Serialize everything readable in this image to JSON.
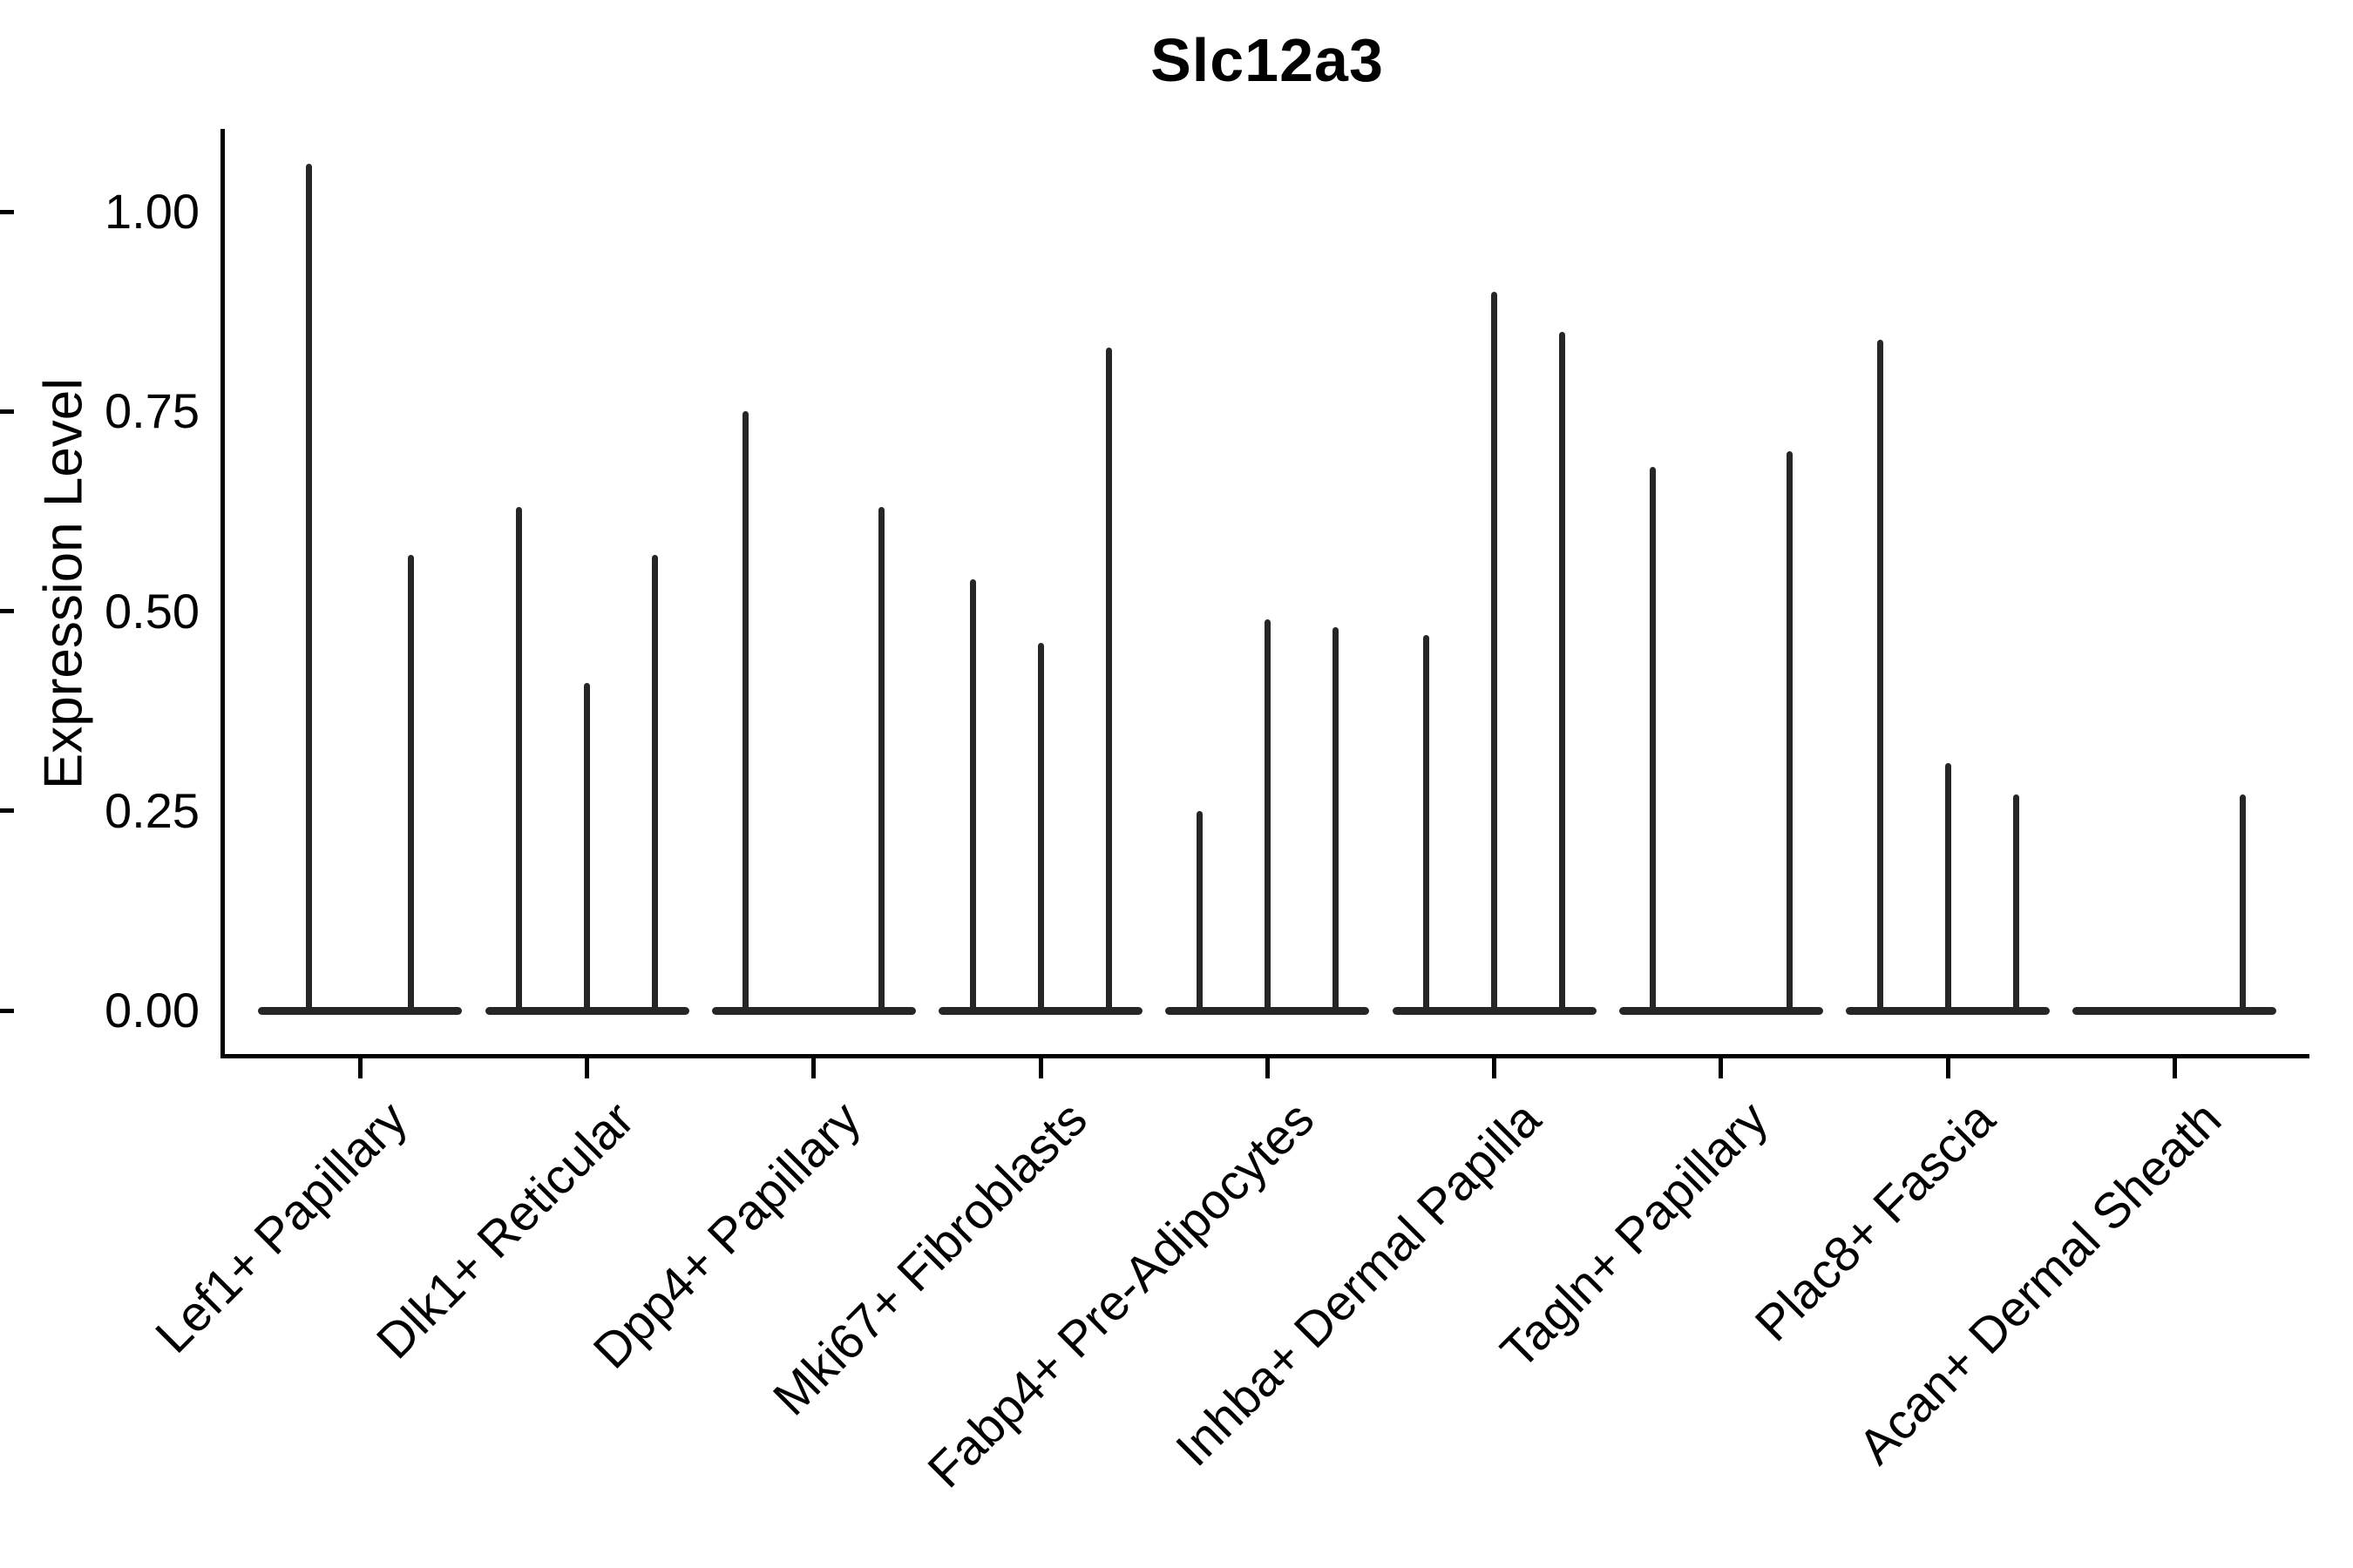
{
  "page": {
    "background": "#ffffff",
    "ink_color": "#000000",
    "violin_color": "#262626"
  },
  "chart_data": {
    "type": "violin",
    "title": "Slc12a3",
    "ylabel": "Expression Level",
    "xlabel": "",
    "ylim": [
      -0.05,
      1.1
    ],
    "grid": false,
    "legend_position": "none",
    "yticks": {
      "labels": [
        "1.00",
        "0.75",
        "0.50",
        "0.25",
        "0.00"
      ],
      "values": [
        1.0,
        0.75,
        0.5,
        0.25,
        0.0
      ]
    },
    "note": "Each cell-type slot holds 2-3 narrow sub-violins; all mass near 0 so each sub-violin renders as a flat base at y=0 with a thin spike up to its max expression value.",
    "categories": [
      {
        "label": "Lef1+ Papillary",
        "violins": [
          {
            "offset": -0.225,
            "max": 1.06
          },
          {
            "offset": 0.225,
            "max": 0.57
          }
        ]
      },
      {
        "label": "Dlk1+ Reticular",
        "violins": [
          {
            "offset": -0.3,
            "max": 0.63
          },
          {
            "offset": 0.0,
            "max": 0.41
          },
          {
            "offset": 0.3,
            "max": 0.57
          }
        ]
      },
      {
        "label": "Dpp4+ Papillary",
        "violins": [
          {
            "offset": -0.3,
            "max": 0.75
          },
          {
            "offset": 0.3,
            "max": 0.63
          }
        ]
      },
      {
        "label": "Mki67+ Fibroblasts",
        "violins": [
          {
            "offset": -0.3,
            "max": 0.54
          },
          {
            "offset": 0.0,
            "max": 0.46
          },
          {
            "offset": 0.3,
            "max": 0.83
          }
        ]
      },
      {
        "label": "Fabp4+ Pre-Adipocytes",
        "violins": [
          {
            "offset": -0.3,
            "max": 0.25
          },
          {
            "offset": 0.0,
            "max": 0.49
          },
          {
            "offset": 0.3,
            "max": 0.48
          }
        ]
      },
      {
        "label": "Inhba+ Dermal Papilla",
        "violins": [
          {
            "offset": -0.3,
            "max": 0.47
          },
          {
            "offset": 0.0,
            "max": 0.9
          },
          {
            "offset": 0.3,
            "max": 0.85
          }
        ]
      },
      {
        "label": "Tagln+ Papillary",
        "violins": [
          {
            "offset": -0.3,
            "max": 0.68
          },
          {
            "offset": 0.3,
            "max": 0.7
          }
        ]
      },
      {
        "label": "Plac8+ Fascia",
        "violins": [
          {
            "offset": -0.3,
            "max": 0.84
          },
          {
            "offset": 0.0,
            "max": 0.31
          },
          {
            "offset": 0.3,
            "max": 0.27
          }
        ]
      },
      {
        "label": "Acan+ Dermal Sheath",
        "violins": [
          {
            "offset": 0.3,
            "max": 0.27
          }
        ]
      }
    ]
  }
}
